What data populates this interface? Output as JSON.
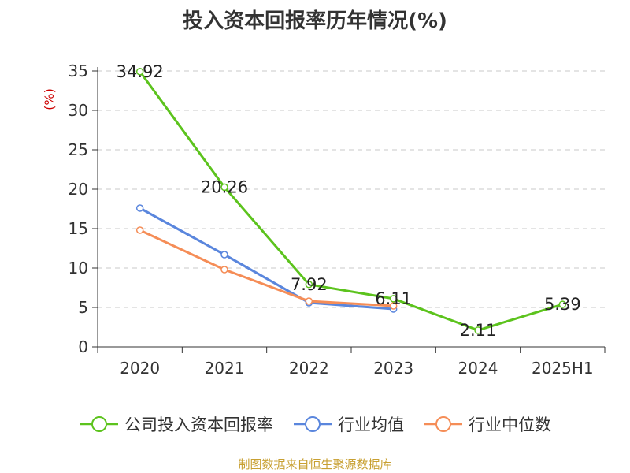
{
  "title": "投入资本回报率历年情况(%)",
  "footer": "制图数据来自恒生聚源数据库",
  "chart_data": {
    "type": "line",
    "categories": [
      "2020",
      "2021",
      "2022",
      "2023",
      "2024",
      "2025H1"
    ],
    "ylabel": "(%)",
    "ylim": [
      0,
      35
    ],
    "yticks": [
      0,
      5,
      10,
      15,
      20,
      25,
      30,
      35
    ],
    "grid": true,
    "legend_position": "bottom",
    "series": [
      {
        "name": "公司投入资本回报率",
        "color": "#5cc31d",
        "values": [
          34.92,
          20.26,
          7.92,
          6.11,
          2.11,
          5.39
        ],
        "labels": [
          "34.92",
          "20.26",
          "7.92",
          "6.11",
          "2.11",
          "5.39"
        ]
      },
      {
        "name": "行业均值",
        "color": "#5a86dd",
        "values": [
          17.6,
          11.7,
          5.6,
          4.8,
          null,
          null
        ]
      },
      {
        "name": "行业中位数",
        "color": "#f58d57",
        "values": [
          14.8,
          9.8,
          5.8,
          5.2,
          null,
          null
        ]
      }
    ]
  }
}
